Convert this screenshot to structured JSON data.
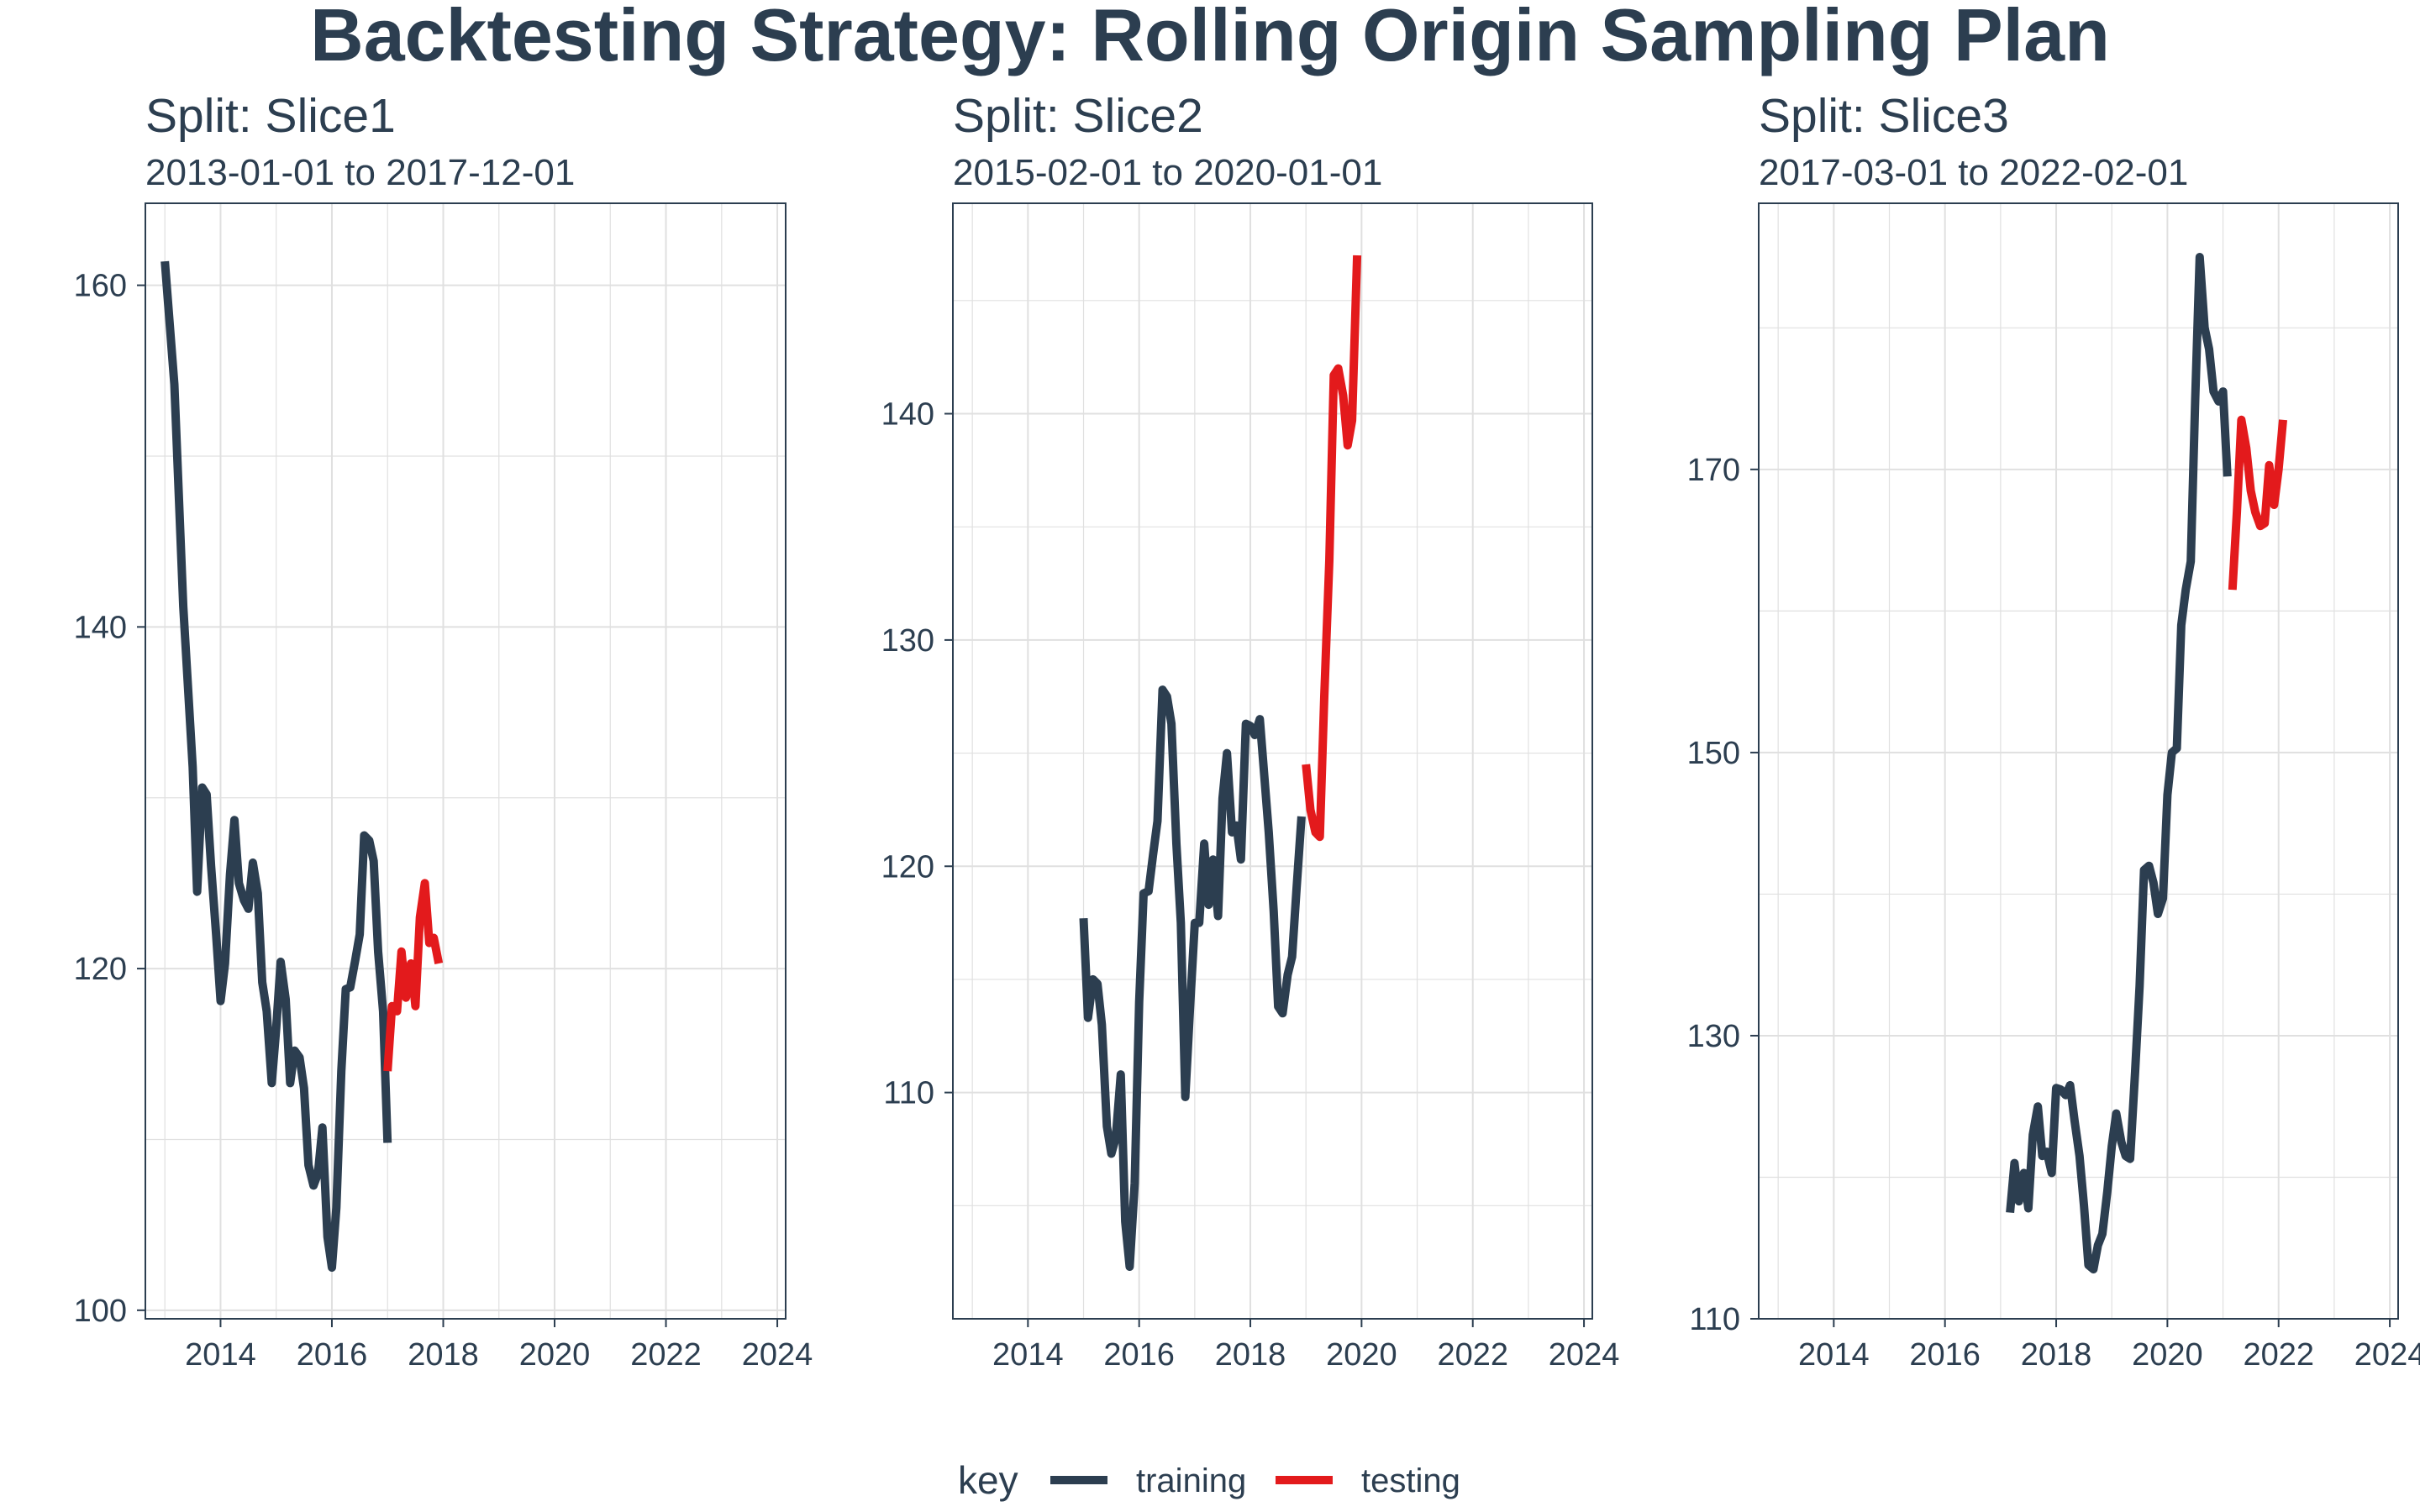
{
  "title": "Backtesting Strategy: Rolling Origin Sampling Plan",
  "legend": {
    "key_label": "key",
    "entries": [
      {
        "label": "training",
        "color": "#2c3e50"
      },
      {
        "label": "testing",
        "color": "#e31a1c"
      }
    ]
  },
  "colors": {
    "training": "#2c3e50",
    "testing": "#e31a1c",
    "grid": "#e0e0e0",
    "border": "#2c3e50"
  },
  "chart_data": [
    {
      "type": "line",
      "title": "Split: Slice1",
      "subtitle": "2013-01-01 to 2017-12-01",
      "xlim": [
        2012.65,
        2024.15
      ],
      "ylim": [
        99.5,
        164.8
      ],
      "x_ticks": [
        2014,
        2016,
        2018,
        2020,
        2022,
        2024
      ],
      "x_tick_labels": [
        "2014",
        "2016",
        "2018",
        "2020",
        "2022",
        "2024"
      ],
      "y_ticks": [
        100,
        120,
        140,
        160
      ],
      "y_tick_labels": [
        "100",
        "120",
        "140",
        "160"
      ],
      "series": [
        {
          "key": "training",
          "points": [
            [
              2013.0,
              161.4
            ],
            [
              2013.17,
              154.2
            ],
            [
              2013.33,
              141.2
            ],
            [
              2013.5,
              131.8
            ],
            [
              2013.58,
              124.5
            ],
            [
              2013.67,
              130.6
            ],
            [
              2013.75,
              130.2
            ],
            [
              2013.83,
              126.0
            ],
            [
              2013.92,
              122.0
            ],
            [
              2014.0,
              118.1
            ],
            [
              2014.08,
              120.3
            ],
            [
              2014.17,
              125.5
            ],
            [
              2014.25,
              128.7
            ],
            [
              2014.33,
              125.0
            ],
            [
              2014.42,
              124.0
            ],
            [
              2014.5,
              123.5
            ],
            [
              2014.58,
              126.2
            ],
            [
              2014.67,
              124.4
            ],
            [
              2014.75,
              119.2
            ],
            [
              2014.83,
              117.5
            ],
            [
              2014.92,
              113.3
            ],
            [
              2015.0,
              116.5
            ],
            [
              2015.08,
              120.4
            ],
            [
              2015.17,
              118.2
            ],
            [
              2015.25,
              113.3
            ],
            [
              2015.33,
              115.2
            ],
            [
              2015.42,
              114.8
            ],
            [
              2015.5,
              113.0
            ],
            [
              2015.58,
              108.5
            ],
            [
              2015.67,
              107.3
            ],
            [
              2015.75,
              108.0
            ],
            [
              2015.83,
              110.7
            ],
            [
              2015.92,
              104.3
            ],
            [
              2016.0,
              102.5
            ],
            [
              2016.08,
              106.0
            ],
            [
              2016.17,
              114.0
            ],
            [
              2016.25,
              118.8
            ],
            [
              2016.33,
              118.9
            ],
            [
              2016.42,
              120.5
            ],
            [
              2016.5,
              122.0
            ],
            [
              2016.58,
              127.8
            ],
            [
              2016.67,
              127.5
            ],
            [
              2016.75,
              126.3
            ],
            [
              2016.83,
              121.0
            ],
            [
              2016.92,
              117.5
            ],
            [
              2017.0,
              109.8
            ]
          ]
        },
        {
          "key": "testing",
          "points": [
            [
              2017.0,
              114.0
            ],
            [
              2017.08,
              117.8
            ],
            [
              2017.17,
              117.5
            ],
            [
              2017.25,
              121.0
            ],
            [
              2017.33,
              118.3
            ],
            [
              2017.42,
              120.3
            ],
            [
              2017.5,
              117.8
            ],
            [
              2017.58,
              123.0
            ],
            [
              2017.67,
              125.0
            ],
            [
              2017.75,
              121.5
            ],
            [
              2017.83,
              121.8
            ],
            [
              2017.92,
              120.3
            ]
          ]
        }
      ]
    },
    {
      "type": "line",
      "title": "Split: Slice2",
      "subtitle": "2015-02-01 to 2020-01-01",
      "xlim": [
        2012.65,
        2024.15
      ],
      "ylim": [
        100.0,
        149.3
      ],
      "x_ticks": [
        2014,
        2016,
        2018,
        2020,
        2022,
        2024
      ],
      "x_tick_labels": [
        "2014",
        "2016",
        "2018",
        "2020",
        "2022",
        "2024"
      ],
      "y_ticks": [
        110,
        120,
        130,
        140
      ],
      "y_tick_labels": [
        "110",
        "120",
        "130",
        "140"
      ],
      "series": [
        {
          "key": "training",
          "points": [
            [
              2015.0,
              117.7
            ],
            [
              2015.08,
              113.3
            ],
            [
              2015.17,
              115.0
            ],
            [
              2015.25,
              114.8
            ],
            [
              2015.33,
              113.0
            ],
            [
              2015.42,
              108.5
            ],
            [
              2015.5,
              107.3
            ],
            [
              2015.58,
              108.0
            ],
            [
              2015.67,
              110.8
            ],
            [
              2015.75,
              104.3
            ],
            [
              2015.83,
              102.3
            ],
            [
              2015.92,
              106.0
            ],
            [
              2016.0,
              114.0
            ],
            [
              2016.08,
              118.8
            ],
            [
              2016.17,
              118.9
            ],
            [
              2016.25,
              120.5
            ],
            [
              2016.33,
              122.0
            ],
            [
              2016.42,
              127.8
            ],
            [
              2016.5,
              127.5
            ],
            [
              2016.58,
              126.3
            ],
            [
              2016.67,
              121.0
            ],
            [
              2016.75,
              117.5
            ],
            [
              2016.83,
              109.8
            ],
            [
              2016.92,
              114.0
            ],
            [
              2017.0,
              117.5
            ],
            [
              2017.08,
              117.5
            ],
            [
              2017.17,
              121.0
            ],
            [
              2017.25,
              118.3
            ],
            [
              2017.33,
              120.3
            ],
            [
              2017.42,
              117.8
            ],
            [
              2017.5,
              123.0
            ],
            [
              2017.58,
              125.0
            ],
            [
              2017.67,
              121.5
            ],
            [
              2017.75,
              121.8
            ],
            [
              2017.83,
              120.3
            ],
            [
              2017.92,
              126.3
            ],
            [
              2018.0,
              126.2
            ],
            [
              2018.08,
              125.8
            ],
            [
              2018.17,
              126.5
            ],
            [
              2018.25,
              124.0
            ],
            [
              2018.33,
              121.5
            ],
            [
              2018.42,
              118.0
            ],
            [
              2018.5,
              113.8
            ],
            [
              2018.58,
              113.5
            ],
            [
              2018.67,
              115.2
            ],
            [
              2018.75,
              116.0
            ],
            [
              2018.83,
              119.0
            ],
            [
              2018.92,
              122.2
            ]
          ]
        },
        {
          "key": "testing",
          "points": [
            [
              2019.0,
              124.5
            ],
            [
              2019.08,
              122.5
            ],
            [
              2019.17,
              121.5
            ],
            [
              2019.25,
              121.3
            ],
            [
              2019.33,
              127.5
            ],
            [
              2019.42,
              133.5
            ],
            [
              2019.5,
              141.7
            ],
            [
              2019.58,
              142.0
            ],
            [
              2019.67,
              140.8
            ],
            [
              2019.75,
              138.6
            ],
            [
              2019.83,
              139.7
            ],
            [
              2019.92,
              147.0
            ]
          ]
        }
      ]
    },
    {
      "type": "line",
      "title": "Split: Slice3",
      "subtitle": "2017-03-01 to 2022-02-01",
      "xlim": [
        2012.65,
        2024.15
      ],
      "ylim": [
        110.0,
        188.8
      ],
      "x_ticks": [
        2014,
        2016,
        2018,
        2020,
        2022,
        2024
      ],
      "x_tick_labels": [
        "2014",
        "2016",
        "2018",
        "2020",
        "2022",
        "2024"
      ],
      "y_ticks": [
        110,
        130,
        150,
        170
      ],
      "y_tick_labels": [
        "110",
        "130",
        "150",
        "170"
      ],
      "series": [
        {
          "key": "training",
          "points": [
            [
              2017.17,
              117.5
            ],
            [
              2017.25,
              121.0
            ],
            [
              2017.33,
              118.3
            ],
            [
              2017.42,
              120.3
            ],
            [
              2017.5,
              117.8
            ],
            [
              2017.58,
              123.0
            ],
            [
              2017.67,
              125.0
            ],
            [
              2017.75,
              121.5
            ],
            [
              2017.83,
              121.8
            ],
            [
              2017.92,
              120.3
            ],
            [
              2018.0,
              126.3
            ],
            [
              2018.08,
              126.2
            ],
            [
              2018.17,
              125.8
            ],
            [
              2018.25,
              126.5
            ],
            [
              2018.33,
              124.0
            ],
            [
              2018.42,
              121.5
            ],
            [
              2018.5,
              118.0
            ],
            [
              2018.58,
              113.8
            ],
            [
              2018.67,
              113.5
            ],
            [
              2018.75,
              115.2
            ],
            [
              2018.83,
              116.0
            ],
            [
              2018.92,
              119.0
            ],
            [
              2019.0,
              122.2
            ],
            [
              2019.08,
              124.5
            ],
            [
              2019.17,
              122.5
            ],
            [
              2019.25,
              121.5
            ],
            [
              2019.33,
              121.3
            ],
            [
              2019.42,
              127.5
            ],
            [
              2019.5,
              133.5
            ],
            [
              2019.58,
              141.7
            ],
            [
              2019.67,
              142.0
            ],
            [
              2019.75,
              140.8
            ],
            [
              2019.83,
              138.6
            ],
            [
              2019.92,
              139.7
            ],
            [
              2020.0,
              147.0
            ],
            [
              2020.08,
              150.0
            ],
            [
              2020.17,
              150.3
            ],
            [
              2020.25,
              159.0
            ],
            [
              2020.33,
              161.5
            ],
            [
              2020.42,
              163.5
            ],
            [
              2020.5,
              175.0
            ],
            [
              2020.58,
              185.0
            ],
            [
              2020.67,
              180.0
            ],
            [
              2020.75,
              178.5
            ],
            [
              2020.83,
              175.5
            ],
            [
              2020.92,
              174.8
            ],
            [
              2021.0,
              175.5
            ],
            [
              2021.08,
              169.5
            ]
          ]
        },
        {
          "key": "testing",
          "points": [
            [
              2021.17,
              161.5
            ],
            [
              2021.25,
              167.0
            ],
            [
              2021.33,
              173.5
            ],
            [
              2021.42,
              171.5
            ],
            [
              2021.5,
              168.5
            ],
            [
              2021.58,
              167.0
            ],
            [
              2021.67,
              166.0
            ],
            [
              2021.75,
              166.2
            ],
            [
              2021.83,
              170.3
            ],
            [
              2021.92,
              167.5
            ],
            [
              2022.0,
              170.0
            ],
            [
              2022.08,
              173.5
            ]
          ]
        }
      ]
    }
  ]
}
